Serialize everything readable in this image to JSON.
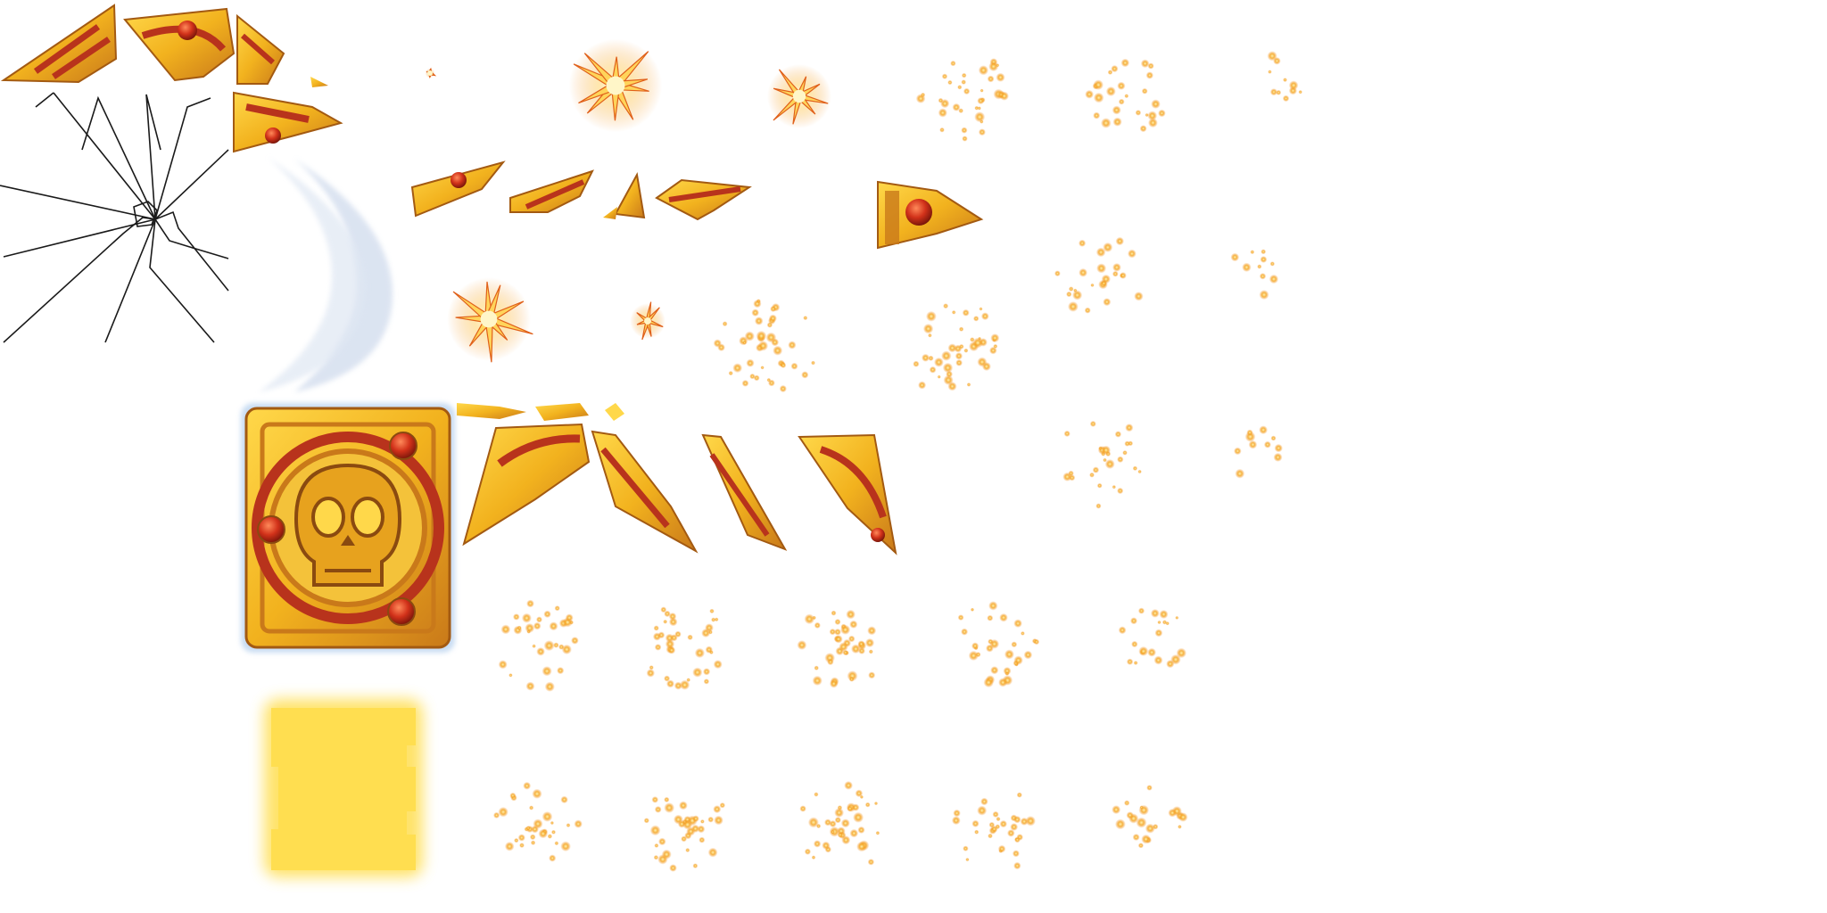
{
  "sheet": {
    "kind": "sprite-atlas",
    "palette": {
      "gold": "#f2b21e",
      "gold_light": "#ffd84a",
      "gold_dark": "#c9791a",
      "ruby": "#d2321a",
      "red_band": "#b8331c",
      "glow_yellow": "#ffde50",
      "spark_orange": "#f08c1e",
      "spark_core": "#fff6c8",
      "crack_line": "#1a1a1a",
      "crescent": "#c9d6ea"
    },
    "sprites": [
      "gold-shard",
      "crack-lines",
      "white-crescent-glow",
      "spark-burst",
      "particle-cluster",
      "golden-skull-tile",
      "yellow-glow-tile"
    ]
  }
}
